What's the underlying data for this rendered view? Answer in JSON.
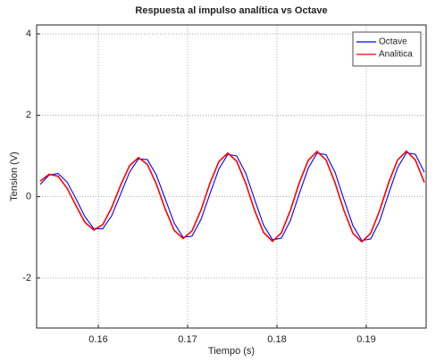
{
  "chart_data": {
    "type": "line",
    "title": "Respuesta al impulso analítica vs Octave",
    "xlabel": "Tiempo (s)",
    "ylabel": "Tension (V)",
    "x": [
      0.1535,
      0.1545,
      0.1555,
      0.1565,
      0.1575,
      0.1585,
      0.1595,
      0.1605,
      0.1615,
      0.1625,
      0.1635,
      0.1645,
      0.1655,
      0.1665,
      0.1675,
      0.1685,
      0.1695,
      0.1705,
      0.1715,
      0.1725,
      0.1735,
      0.1745,
      0.1755,
      0.1765,
      0.1775,
      0.1785,
      0.1795,
      0.1805,
      0.1815,
      0.1825,
      0.1835,
      0.1845,
      0.1855,
      0.1865,
      0.1875,
      0.1885,
      0.1895,
      0.1905,
      0.1915,
      0.1925,
      0.1935,
      0.1945,
      0.1955,
      0.1965
    ],
    "series": [
      {
        "name": "Octave",
        "color": "#0000ff",
        "values": [
          0.3,
          0.53,
          0.57,
          0.36,
          -0.05,
          -0.49,
          -0.79,
          -0.79,
          -0.47,
          0.06,
          0.6,
          0.93,
          0.91,
          0.53,
          -0.06,
          -0.65,
          -1.0,
          -0.97,
          -0.56,
          0.07,
          0.68,
          1.04,
          1.0,
          0.58,
          -0.07,
          -0.7,
          -1.06,
          -1.02,
          -0.59,
          0.07,
          0.7,
          1.07,
          1.03,
          0.6,
          -0.07,
          -0.71,
          -1.08,
          -1.04,
          -0.6,
          0.07,
          0.71,
          1.08,
          1.04,
          0.6
        ]
      },
      {
        "name": "Analitica",
        "color": "#ff0000",
        "values": [
          0.38,
          0.55,
          0.5,
          0.21,
          -0.22,
          -0.63,
          -0.82,
          -0.69,
          -0.27,
          0.28,
          0.76,
          0.96,
          0.79,
          0.31,
          -0.31,
          -0.83,
          -1.03,
          -0.84,
          -0.33,
          0.33,
          0.86,
          1.07,
          0.87,
          0.33,
          -0.34,
          -0.88,
          -1.1,
          -0.89,
          -0.34,
          0.34,
          0.89,
          1.11,
          0.9,
          0.34,
          -0.34,
          -0.9,
          -1.11,
          -0.9,
          -0.34,
          0.34,
          0.9,
          1.12,
          0.9,
          0.35
        ]
      }
    ],
    "xlim": [
      0.1531,
      0.1967
    ],
    "xticks": [
      0.16,
      0.17,
      0.18,
      0.19
    ],
    "ylim": [
      -3.23,
      4.22
    ],
    "yticks": [
      -2,
      0,
      2,
      4
    ],
    "grid": true,
    "legend": "northeast"
  }
}
